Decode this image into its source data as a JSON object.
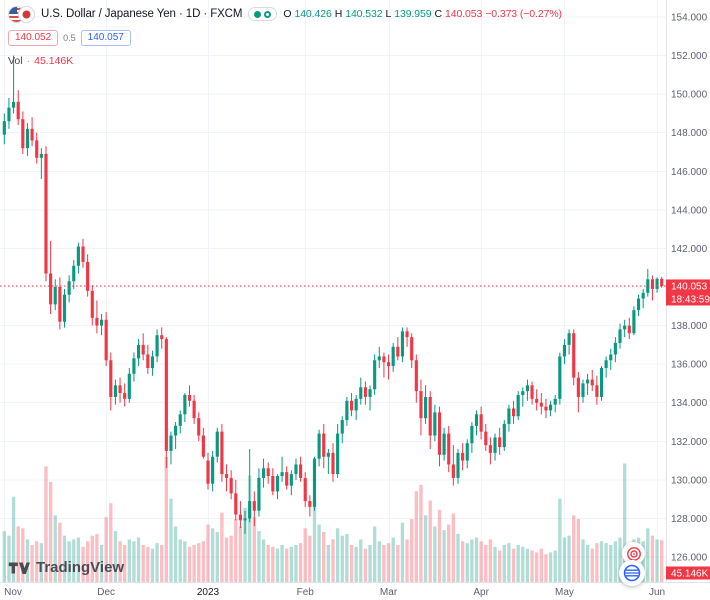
{
  "header": {
    "symbol_title": "U.S. Dollar / Japanese Yen · 1D · FXCM",
    "ohlc": {
      "o_label": "O",
      "o_value": "140.426",
      "h_label": "H",
      "h_value": "140.532",
      "l_label": "L",
      "l_value": "139.959",
      "c_label": "C",
      "c_value": "140.053",
      "change": "−0.373 (−0.27%)"
    },
    "bid": "140.052",
    "spread": "0.5",
    "ask": "140.057",
    "vol_label": "Vol",
    "vol_sep": "·",
    "vol_value": "45.146K"
  },
  "logo": {
    "text": "TradingView"
  },
  "chart_data": {
    "type": "candlestick",
    "title": "U.S. Dollar / Japanese Yen",
    "timeframe": "1D",
    "exchange": "FXCM",
    "price_axis_min": 126,
    "price_axis_max": 154,
    "price_grid": [
      154,
      152,
      150,
      148,
      146,
      144,
      142,
      140,
      138,
      136,
      134,
      132,
      130,
      128,
      126
    ],
    "price_tick_labels": [
      "154.000",
      "152.000",
      "150.000",
      "148.000",
      "146.000",
      "144.000",
      "142.000",
      "138.000",
      "136.000",
      "134.000",
      "132.000",
      "130.000",
      "128.000",
      "126.000"
    ],
    "time_labels": [
      {
        "text": "Nov",
        "bar": 0
      },
      {
        "text": "Dec",
        "bar": 22
      },
      {
        "text": "2023",
        "bar": 44,
        "year": true
      },
      {
        "text": "Feb",
        "bar": 65
      },
      {
        "text": "Mar",
        "bar": 83
      },
      {
        "text": "Apr",
        "bar": 103
      },
      {
        "text": "May",
        "bar": 121
      },
      {
        "text": "Jun",
        "bar": 141
      }
    ],
    "current_price": 140.053,
    "axis_badges": {
      "price": "140.053",
      "countdown": "18:43:59",
      "volume": "45.146K"
    },
    "current_bar": {
      "o": 140.426,
      "h": 140.532,
      "l": 139.959,
      "c": 140.053,
      "change": -0.373,
      "change_pct": -0.27,
      "volume_k": 45.146
    },
    "colors": {
      "up": "#089981",
      "down": "#f23645",
      "vol_up": "rgba(8,153,129,0.32)",
      "vol_down": "rgba(242,54,69,0.32)",
      "grid": "#f0f3fa",
      "axis_border": "#e0e3eb",
      "axis_text": "#5d616e",
      "accent_blue": "#2962ff"
    },
    "volume_max_k": 135,
    "candles": [
      [
        147.9,
        149.0,
        147.4,
        148.6
      ],
      [
        148.6,
        149.8,
        148.2,
        149.3
      ],
      [
        149.3,
        152.0,
        149.0,
        149.6
      ],
      [
        149.6,
        150.2,
        148.4,
        148.7
      ],
      [
        148.7,
        149.1,
        146.9,
        147.2
      ],
      [
        147.2,
        148.5,
        146.8,
        148.2
      ],
      [
        148.2,
        148.8,
        147.3,
        147.6
      ],
      [
        147.6,
        148.0,
        146.4,
        146.7
      ],
      [
        146.7,
        147.2,
        145.6,
        146.9
      ],
      [
        146.9,
        147.3,
        140.3,
        140.7
      ],
      [
        140.7,
        142.4,
        138.6,
        139.1
      ],
      [
        139.1,
        140.4,
        138.8,
        140.0
      ],
      [
        140.0,
        140.5,
        137.8,
        138.2
      ],
      [
        138.2,
        139.9,
        137.9,
        139.6
      ],
      [
        139.6,
        140.6,
        139.2,
        140.3
      ],
      [
        140.3,
        141.4,
        139.9,
        141.1
      ],
      [
        141.1,
        142.3,
        140.7,
        142.1
      ],
      [
        142.1,
        142.5,
        141.0,
        141.3
      ],
      [
        141.3,
        141.7,
        139.5,
        139.8
      ],
      [
        139.8,
        140.1,
        138.0,
        138.4
      ],
      [
        138.4,
        139.3,
        137.6,
        138.0
      ],
      [
        138.0,
        138.6,
        137.5,
        138.3
      ],
      [
        138.3,
        138.7,
        135.9,
        136.2
      ],
      [
        136.2,
        136.6,
        133.6,
        134.3
      ],
      [
        134.3,
        135.2,
        133.9,
        134.9
      ],
      [
        134.9,
        135.3,
        134.0,
        134.5
      ],
      [
        134.5,
        135.0,
        133.8,
        134.2
      ],
      [
        134.2,
        135.8,
        134.0,
        135.5
      ],
      [
        135.5,
        136.6,
        135.1,
        136.3
      ],
      [
        136.3,
        137.3,
        135.9,
        137.0
      ],
      [
        137.0,
        137.6,
        136.2,
        136.5
      ],
      [
        136.5,
        137.0,
        135.5,
        135.8
      ],
      [
        135.8,
        136.7,
        135.4,
        136.4
      ],
      [
        136.4,
        137.8,
        136.1,
        137.5
      ],
      [
        137.5,
        137.9,
        136.8,
        137.3
      ],
      [
        137.3,
        137.4,
        130.6,
        131.5
      ],
      [
        131.5,
        132.5,
        130.8,
        132.3
      ],
      [
        132.3,
        133.0,
        131.6,
        132.8
      ],
      [
        132.8,
        133.6,
        132.4,
        133.4
      ],
      [
        133.4,
        134.5,
        133.0,
        134.4
      ],
      [
        134.4,
        134.9,
        133.8,
        134.1
      ],
      [
        134.1,
        134.4,
        132.9,
        133.2
      ],
      [
        133.2,
        133.5,
        132.0,
        132.3
      ],
      [
        132.3,
        132.7,
        131.1,
        131.2
      ],
      [
        131.0,
        131.4,
        129.5,
        129.8
      ],
      [
        129.8,
        131.5,
        129.4,
        131.2
      ],
      [
        131.2,
        132.7,
        130.9,
        132.5
      ],
      [
        132.5,
        132.9,
        129.9,
        130.3
      ],
      [
        130.3,
        130.8,
        129.4,
        130.1
      ],
      [
        130.1,
        130.5,
        129.0,
        129.3
      ],
      [
        129.3,
        130.0,
        127.9,
        128.2
      ],
      [
        128.2,
        128.9,
        127.5,
        127.9
      ],
      [
        127.9,
        128.4,
        127.2,
        128.0
      ],
      [
        128.0,
        131.6,
        127.8,
        128.9
      ],
      [
        128.9,
        129.4,
        127.6,
        128.4
      ],
      [
        128.4,
        130.6,
        128.1,
        130.1
      ],
      [
        130.1,
        131.1,
        129.6,
        130.6
      ],
      [
        130.6,
        130.9,
        129.8,
        130.2
      ],
      [
        130.2,
        130.6,
        129.2,
        129.4
      ],
      [
        129.4,
        130.3,
        129.0,
        130.2
      ],
      [
        130.2,
        131.2,
        129.9,
        130.4
      ],
      [
        130.4,
        130.7,
        129.5,
        129.7
      ],
      [
        129.7,
        130.5,
        129.2,
        130.3
      ],
      [
        130.3,
        131.1,
        130.0,
        130.8
      ],
      [
        130.8,
        131.2,
        129.9,
        130.1
      ],
      [
        130.1,
        130.4,
        128.6,
        128.9
      ],
      [
        128.9,
        129.2,
        128.1,
        128.6
      ],
      [
        128.6,
        131.2,
        128.4,
        131.1
      ],
      [
        131.1,
        132.6,
        130.7,
        132.4
      ],
      [
        132.4,
        132.9,
        130.6,
        131.2
      ],
      [
        131.2,
        131.6,
        130.3,
        131.4
      ],
      [
        131.4,
        131.9,
        129.9,
        130.3
      ],
      [
        130.3,
        132.9,
        130.1,
        132.4
      ],
      [
        132.4,
        133.3,
        131.9,
        133.1
      ],
      [
        133.1,
        134.3,
        132.8,
        134.1
      ],
      [
        134.1,
        134.5,
        133.3,
        133.6
      ],
      [
        133.6,
        134.4,
        133.1,
        134.2
      ],
      [
        134.2,
        135.3,
        133.9,
        134.8
      ],
      [
        134.8,
        135.1,
        133.9,
        134.3
      ],
      [
        134.3,
        134.9,
        133.6,
        134.7
      ],
      [
        134.7,
        136.5,
        134.4,
        136.2
      ],
      [
        136.2,
        136.9,
        135.8,
        136.4
      ],
      [
        136.4,
        136.6,
        135.3,
        136.1
      ],
      [
        136.1,
        136.5,
        135.2,
        135.9
      ],
      [
        135.9,
        137.1,
        135.6,
        136.9
      ],
      [
        136.9,
        137.4,
        136.2,
        136.4
      ],
      [
        136.4,
        137.9,
        136.1,
        137.7
      ],
      [
        137.7,
        137.9,
        136.9,
        137.4
      ],
      [
        137.4,
        137.6,
        135.8,
        136.2
      ],
      [
        136.2,
        136.5,
        134.0,
        134.6
      ],
      [
        134.6,
        135.2,
        132.3,
        133.2
      ],
      [
        133.2,
        134.9,
        132.9,
        134.3
      ],
      [
        134.3,
        134.6,
        131.6,
        132.3
      ],
      [
        132.3,
        133.9,
        132.0,
        133.5
      ],
      [
        133.5,
        133.8,
        130.7,
        131.3
      ],
      [
        131.3,
        132.7,
        131.0,
        132.4
      ],
      [
        132.4,
        132.8,
        130.4,
        130.8
      ],
      [
        130.8,
        131.8,
        129.7,
        130.1
      ],
      [
        130.1,
        131.6,
        129.8,
        131.4
      ],
      [
        131.4,
        131.9,
        130.5,
        131.0
      ],
      [
        131.0,
        132.1,
        130.6,
        131.9
      ],
      [
        131.9,
        133.0,
        131.4,
        132.8
      ],
      [
        132.8,
        133.6,
        132.3,
        133.4
      ],
      [
        133.4,
        133.8,
        132.1,
        132.5
      ],
      [
        132.5,
        132.9,
        131.5,
        131.8
      ],
      [
        131.8,
        132.2,
        130.8,
        131.4
      ],
      [
        131.4,
        132.4,
        131.0,
        132.2
      ],
      [
        132.2,
        132.7,
        131.3,
        131.7
      ],
      [
        131.7,
        133.1,
        131.5,
        132.9
      ],
      [
        132.9,
        133.9,
        132.5,
        133.7
      ],
      [
        133.7,
        134.1,
        132.9,
        133.3
      ],
      [
        133.3,
        134.6,
        133.1,
        134.4
      ],
      [
        134.4,
        134.8,
        133.8,
        134.6
      ],
      [
        134.6,
        135.2,
        134.1,
        134.9
      ],
      [
        134.9,
        135.1,
        133.9,
        134.2
      ],
      [
        134.2,
        134.7,
        133.6,
        134.0
      ],
      [
        134.0,
        134.5,
        133.4,
        133.8
      ],
      [
        133.8,
        134.2,
        133.2,
        133.6
      ],
      [
        133.6,
        134.1,
        133.3,
        133.9
      ],
      [
        133.9,
        134.4,
        133.5,
        134.2
      ],
      [
        134.2,
        136.6,
        133.9,
        136.4
      ],
      [
        136.4,
        137.3,
        136.0,
        137.0
      ],
      [
        137.0,
        137.8,
        136.5,
        137.6
      ],
      [
        137.6,
        137.8,
        134.9,
        135.3
      ],
      [
        135.3,
        135.6,
        133.5,
        134.3
      ],
      [
        134.3,
        135.2,
        134.0,
        135.0
      ],
      [
        135.0,
        135.5,
        134.4,
        135.2
      ],
      [
        135.2,
        135.7,
        134.6,
        134.9
      ],
      [
        134.9,
        135.4,
        133.9,
        134.3
      ],
      [
        134.3,
        135.9,
        134.1,
        135.8
      ],
      [
        135.8,
        136.4,
        135.3,
        136.2
      ],
      [
        136.2,
        136.8,
        135.7,
        136.5
      ],
      [
        136.5,
        137.4,
        136.1,
        137.1
      ],
      [
        137.1,
        138.1,
        136.8,
        137.8
      ],
      [
        137.8,
        138.3,
        137.4,
        138.0
      ],
      [
        138.0,
        138.4,
        137.3,
        137.6
      ],
      [
        137.6,
        139.0,
        137.5,
        138.8
      ],
      [
        138.8,
        139.6,
        138.5,
        139.4
      ],
      [
        139.4,
        139.9,
        138.9,
        139.7
      ],
      [
        139.7,
        140.93,
        139.5,
        140.4
      ],
      [
        140.4,
        140.6,
        139.3,
        139.9
      ],
      [
        139.9,
        140.5,
        139.7,
        140.426
      ],
      [
        140.426,
        140.532,
        139.959,
        140.053
      ]
    ],
    "volumes_k": [
      55,
      50,
      92,
      60,
      58,
      46,
      40,
      44,
      42,
      125,
      108,
      72,
      64,
      50,
      44,
      46,
      48,
      38,
      44,
      50,
      52,
      40,
      70,
      85,
      55,
      44,
      40,
      46,
      44,
      48,
      40,
      38,
      36,
      42,
      40,
      135,
      90,
      60,
      46,
      44,
      38,
      40,
      42,
      44,
      62,
      58,
      54,
      75,
      48,
      50,
      68,
      60,
      80,
      115,
      70,
      55,
      46,
      40,
      38,
      36,
      40,
      36,
      38,
      40,
      42,
      58,
      50,
      88,
      62,
      54,
      40,
      46,
      58,
      50,
      52,
      40,
      38,
      46,
      36,
      40,
      60,
      44,
      40,
      42,
      48,
      40,
      64,
      46,
      68,
      98,
      105,
      72,
      88,
      60,
      78,
      56,
      62,
      74,
      52,
      44,
      42,
      46,
      48,
      44,
      40,
      46,
      38,
      34,
      40,
      42,
      36,
      40,
      38,
      36,
      34,
      32,
      36,
      30,
      32,
      34,
      90,
      48,
      50,
      72,
      68,
      46,
      40,
      36,
      42,
      44,
      42,
      40,
      44,
      48,
      128,
      36,
      46,
      48,
      44,
      58,
      50,
      46,
      45.146
    ]
  }
}
